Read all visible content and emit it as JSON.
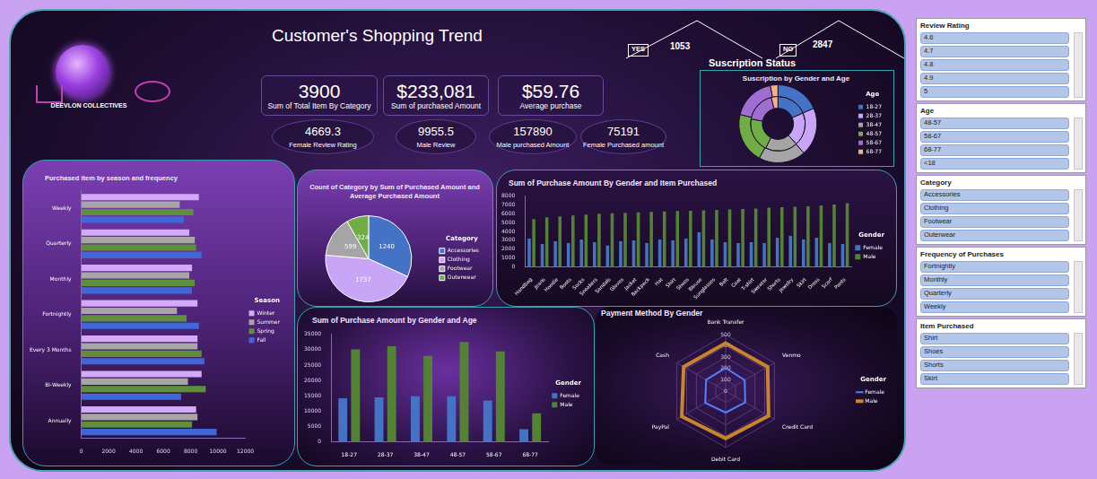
{
  "page": {
    "title": "Customer's Shopping Trend",
    "logo_text": "DEEVLON COLLECTIVES",
    "kpis": [
      {
        "value": "3900",
        "label": "Sum of Total Item By Category"
      },
      {
        "value": "$233,081",
        "label": "Sum of purchased Amount"
      },
      {
        "value": "$59.76",
        "label": "Average purchase"
      }
    ],
    "stats": [
      {
        "value": "4669.3",
        "label": "Female Review Rating"
      },
      {
        "value": "9955.5",
        "label": "Male Review"
      },
      {
        "value": "157890",
        "label": "Male purchased Amount"
      },
      {
        "value": "75191",
        "label": "Female Purchased amount"
      }
    ],
    "subscription": {
      "title": "Suscription Status",
      "items": [
        {
          "label": "YES",
          "value": "1053"
        },
        {
          "label": "NO",
          "value": "2847"
        }
      ]
    },
    "slicers": [
      {
        "title": "Review Rating",
        "items": [
          "4.6",
          "4.7",
          "4.8",
          "4.9",
          "5"
        ]
      },
      {
        "title": "Age",
        "items": [
          "48-57",
          "58-67",
          "68-77",
          "<18"
        ]
      },
      {
        "title": "Category",
        "items": [
          "Accessories",
          "Clothing",
          "Footwear",
          "Outerwear"
        ]
      },
      {
        "title": "Frequency of Purchases",
        "items": [
          "Fortnightly",
          "Monthly",
          "Quarterly",
          "Weekly"
        ]
      },
      {
        "title": "Item Purchased",
        "items": [
          "Shirt",
          "Shoes",
          "Shorts",
          "Skirt"
        ]
      }
    ]
  },
  "chart_data": [
    {
      "type": "doughnut",
      "title": "Suscription by Gender and Age",
      "categories": [
        "18-27",
        "28-37",
        "38-47",
        "48-57",
        "58-67",
        "68-77"
      ],
      "series": [
        {
          "values": [
            195,
            210,
            205,
            220,
            190,
            33
          ]
        },
        {
          "values": [
            530,
            560,
            545,
            580,
            520,
            112
          ]
        }
      ],
      "colors": [
        "#4472c4",
        "#c9a6f5",
        "#a5a5a5",
        "#70ad47",
        "#9e6fd0",
        "#f4b183"
      ],
      "legend": "right",
      "legend_title": "Age"
    },
    {
      "type": "bar",
      "title": "Purchased item by season and frequency",
      "orientation": "horizontal",
      "categories": [
        "Weekly",
        "Quarterly",
        "Monthly",
        "Fortnightly",
        "Every 3 Months",
        "Bi-Weekly",
        "Annually"
      ],
      "series": [
        {
          "name": "Winter",
          "color": "#d4a9f7",
          "values": [
            8600,
            7900,
            8100,
            8500,
            8500,
            8800,
            8400
          ]
        },
        {
          "name": "Summer",
          "color": "#a6a6a6",
          "values": [
            7200,
            8300,
            7900,
            7000,
            8500,
            7800,
            8500
          ]
        },
        {
          "name": "Spring",
          "color": "#5f8f3a",
          "values": [
            8200,
            8400,
            8300,
            7700,
            8800,
            9100,
            8100
          ]
        },
        {
          "name": "Fall",
          "color": "#4166d5",
          "values": [
            7500,
            8800,
            8100,
            8600,
            9000,
            7300,
            9900
          ]
        }
      ],
      "xlim": [
        0,
        12000
      ],
      "xticks": [
        0,
        2000,
        4000,
        6000,
        8000,
        10000,
        12000
      ],
      "grid": false,
      "legend": "right",
      "legend_title": "Season"
    },
    {
      "type": "pie",
      "title": "Count of Category by Sum of Purchased Amount and Average Purchased Amount",
      "categories": [
        "Accessories",
        "Clothing",
        "Footwear",
        "Outerwear"
      ],
      "values": [
        1240,
        1737,
        599,
        324
      ],
      "colors": [
        "#4472c4",
        "#c9a6f5",
        "#a5a5a5",
        "#70ad47"
      ],
      "data_labels": true,
      "legend": "right",
      "legend_title": "Category"
    },
    {
      "type": "bar",
      "title": "Sum of Purchase Amount By Gender and Item Purchased",
      "categories": [
        "Handbag",
        "Jeans",
        "Hoodie",
        "Boots",
        "Socks",
        "Sneakers",
        "Sandals",
        "Gloves",
        "Jacket",
        "Backpack",
        "Hat",
        "Shirt",
        "Shoes",
        "Blouse",
        "Sunglasses",
        "Belt",
        "Coat",
        "T-shirt",
        "Sweater",
        "Shorts",
        "Jewelry",
        "Skirt",
        "Dress",
        "Scarf",
        "Pants"
      ],
      "series": [
        {
          "name": "Female",
          "color": "#4472c4",
          "values": [
            3200,
            2600,
            2900,
            2700,
            3100,
            2800,
            2400,
            2900,
            3000,
            2700,
            3100,
            3000,
            3200,
            3900,
            3100,
            2800,
            2700,
            2800,
            2700,
            3300,
            3500,
            3100,
            3300,
            2700,
            2600
          ]
        },
        {
          "name": "Male",
          "color": "#548235",
          "values": [
            5400,
            5600,
            5700,
            5800,
            5900,
            6000,
            6050,
            6100,
            6150,
            6200,
            6250,
            6300,
            6350,
            6400,
            6450,
            6500,
            6550,
            6600,
            6700,
            6750,
            6800,
            6850,
            6950,
            7050,
            7200
          ]
        }
      ],
      "ylim": [
        0,
        8000
      ],
      "yticks": [
        0,
        1000,
        2000,
        3000,
        4000,
        5000,
        6000,
        7000,
        8000
      ],
      "grid": false,
      "legend": "right",
      "legend_title": "Gender"
    },
    {
      "type": "bar",
      "title": "Sum of Purchase Amount by Gender and Age",
      "categories": [
        "18-27",
        "28-37",
        "38-47",
        "48-57",
        "58-67",
        "68-77"
      ],
      "series": [
        {
          "name": "Female",
          "color": "#4472c4",
          "values": [
            14200,
            14500,
            14900,
            14900,
            13500,
            4200
          ]
        },
        {
          "name": "Male",
          "color": "#548235",
          "values": [
            30100,
            31100,
            28000,
            32500,
            29400,
            9300
          ]
        }
      ],
      "ylim": [
        0,
        35000
      ],
      "yticks": [
        0,
        5000,
        10000,
        15000,
        20000,
        25000,
        30000,
        35000
      ],
      "grid": false,
      "legend": "right",
      "legend_title": "Gender"
    },
    {
      "type": "radar",
      "title": "Payment Method By Gender",
      "categories": [
        "Bank Transfer",
        "Venmo",
        "Credit Card",
        "Debit Card",
        "PayPal",
        "Cash"
      ],
      "series": [
        {
          "name": "Female",
          "color": "#4f81ff",
          "values": [
            205,
            195,
            200,
            190,
            210,
            200
          ]
        },
        {
          "name": "Male",
          "color": "#c8862a",
          "values": [
            425,
            430,
            440,
            420,
            450,
            430
          ]
        }
      ],
      "ylim": [
        0,
        500
      ],
      "yticks": [
        0,
        100,
        200,
        300,
        400,
        500
      ],
      "grid": true,
      "legend": "right",
      "legend_title": "Gender"
    }
  ]
}
